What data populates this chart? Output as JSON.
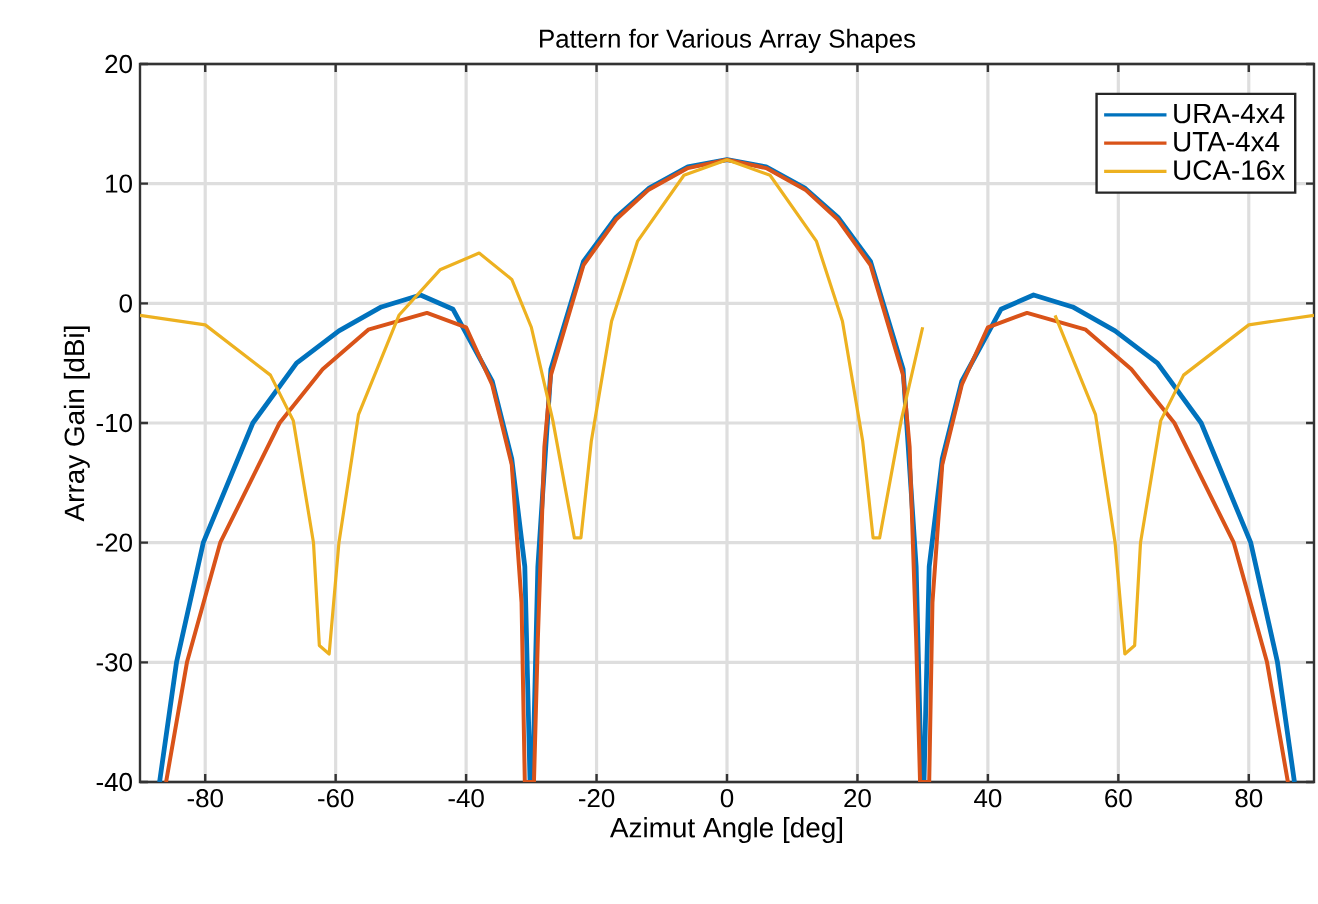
{
  "chart_data": {
    "type": "line",
    "title": "Pattern for Various Array Shapes",
    "xlabel": "Azimut Angle [deg]",
    "ylabel": "Array Gain [dBi]",
    "xlim": [
      -90,
      90
    ],
    "xticks": [
      -80,
      -60,
      -40,
      -20,
      0,
      20,
      40,
      60,
      80
    ],
    "ylim": [
      -40,
      20
    ],
    "yticks": [
      -40,
      -30,
      -20,
      -10,
      0,
      10,
      20
    ],
    "grid": true,
    "legend": "top right",
    "line_style": "solid",
    "series": [
      {
        "name": "URA-4x4",
        "color": "#0072bd",
        "x": [
          -87,
          -84.4,
          -80.3,
          -72.7,
          -66,
          -59.5,
          -53,
          -47,
          -42,
          -36,
          -33,
          -31,
          -30.2,
          -29.8,
          -29,
          -27,
          -22,
          -17,
          -12,
          -6,
          0,
          6,
          12,
          17,
          22,
          27,
          29,
          29.8,
          30.2,
          31,
          33,
          36,
          42,
          47,
          53,
          59.5,
          66,
          72.7,
          80.3,
          84.4,
          87
        ],
        "values": [
          -40,
          -30,
          -20,
          -10,
          -5,
          -2.3,
          -0.3,
          0.7,
          -0.5,
          -6.5,
          -13,
          -22,
          -40,
          -40,
          -22,
          -5.5,
          3.5,
          7.2,
          9.6,
          11.4,
          12,
          11.4,
          9.6,
          7.2,
          3.5,
          -5.5,
          -22,
          -40,
          -40,
          -22,
          -13,
          -6.5,
          -0.5,
          0.7,
          -0.3,
          -2.3,
          -5,
          -10,
          -20,
          -30,
          -40
        ]
      },
      {
        "name": "UTA-4x4",
        "color": "#d95319",
        "x": [
          -86,
          -82.8,
          -77.7,
          -68.6,
          -62,
          -55,
          -46,
          -40,
          -36,
          -33,
          -31.5,
          -31,
          -29.6,
          -29,
          -28,
          -27,
          -22,
          -17,
          -12,
          -6,
          0,
          6,
          12,
          17,
          22,
          27,
          28,
          29,
          29.6,
          31,
          31.5,
          33,
          36,
          40,
          46,
          55,
          62,
          68.6,
          77.7,
          82.8,
          86
        ],
        "values": [
          -40,
          -30,
          -20,
          -10,
          -5.5,
          -2.2,
          -0.8,
          -2,
          -6.8,
          -13.5,
          -25,
          -40,
          -40,
          -28,
          -12,
          -6,
          3.2,
          7,
          9.5,
          11.3,
          12,
          11.3,
          9.5,
          7,
          3.2,
          -6,
          -12,
          -28,
          -40,
          -40,
          -25,
          -13.5,
          -6.8,
          -2,
          -0.8,
          -2.2,
          -5.5,
          -10,
          -20,
          -30,
          -40
        ]
      },
      {
        "name": "UCA-16x",
        "color": "#edb120",
        "x": [
          -90,
          -80,
          -70,
          -66.5,
          -63.4,
          -62.5,
          -61,
          -59.5,
          -56.5,
          -50.3,
          -44,
          -38,
          -33,
          -30,
          -26.7,
          -23.4,
          -22.4,
          -20.8,
          -17.7,
          -13.7,
          -6.6,
          0,
          6.6,
          13.7,
          17.7,
          20.8,
          22.4,
          23.4,
          26.7,
          30,
          33,
          38,
          44,
          50.3,
          56.5,
          59.5,
          61,
          62.5,
          63.4,
          66.5,
          70,
          80,
          90
        ],
        "values": [
          -1,
          -1.8,
          -6,
          -9.8,
          -20,
          -28.6,
          -29.3,
          -20,
          -9.3,
          -1,
          2.8,
          4.2,
          2,
          -2,
          -9.8,
          -19.6,
          -19.6,
          -11.5,
          -1.5,
          5.2,
          10.7,
          12,
          10.7,
          5.2,
          -1.5,
          -11.5,
          -19.6,
          -19.6,
          -9.8,
          -2,
          null,
          null,
          null,
          -1,
          -9.3,
          -20,
          -29.3,
          -28.6,
          -20,
          -9.8,
          -6,
          -1.8,
          -1
        ]
      }
    ]
  }
}
